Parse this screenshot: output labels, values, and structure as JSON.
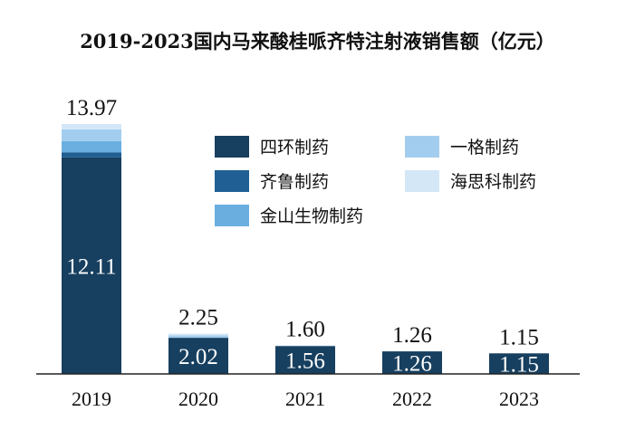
{
  "chart_data": {
    "type": "bar",
    "stacked": true,
    "title": "2019-2023国内马来酸桂哌齐特注射液销售额（亿元）",
    "categories": [
      "2019",
      "2020",
      "2021",
      "2022",
      "2023"
    ],
    "series": [
      {
        "name": "四环制药",
        "color": "#173f5f",
        "values": [
          12.11,
          2.02,
          1.56,
          1.26,
          1.15
        ]
      },
      {
        "name": "齐鲁制药",
        "color": "#1f5f93",
        "values": [
          0.28,
          0,
          0,
          0,
          0
        ]
      },
      {
        "name": "金山生物制药",
        "color": "#6aaee0",
        "values": [
          0.63,
          0,
          0,
          0,
          0
        ]
      },
      {
        "name": "一格制药",
        "color": "#a3cdee",
        "values": [
          0.65,
          0.13,
          0,
          0,
          0
        ]
      },
      {
        "name": "海思科制药",
        "color": "#d4e7f7",
        "values": [
          0.3,
          0.1,
          0.04,
          0,
          0
        ]
      }
    ],
    "segment_labels": [
      "12.11",
      "2.02",
      "1.56",
      "1.26",
      "1.15"
    ],
    "totals": [
      "13.97",
      "2.25",
      "1.60",
      "1.26",
      "1.15"
    ],
    "ylim": [
      0,
      14
    ],
    "grid": false,
    "legend_position": "top-right"
  }
}
